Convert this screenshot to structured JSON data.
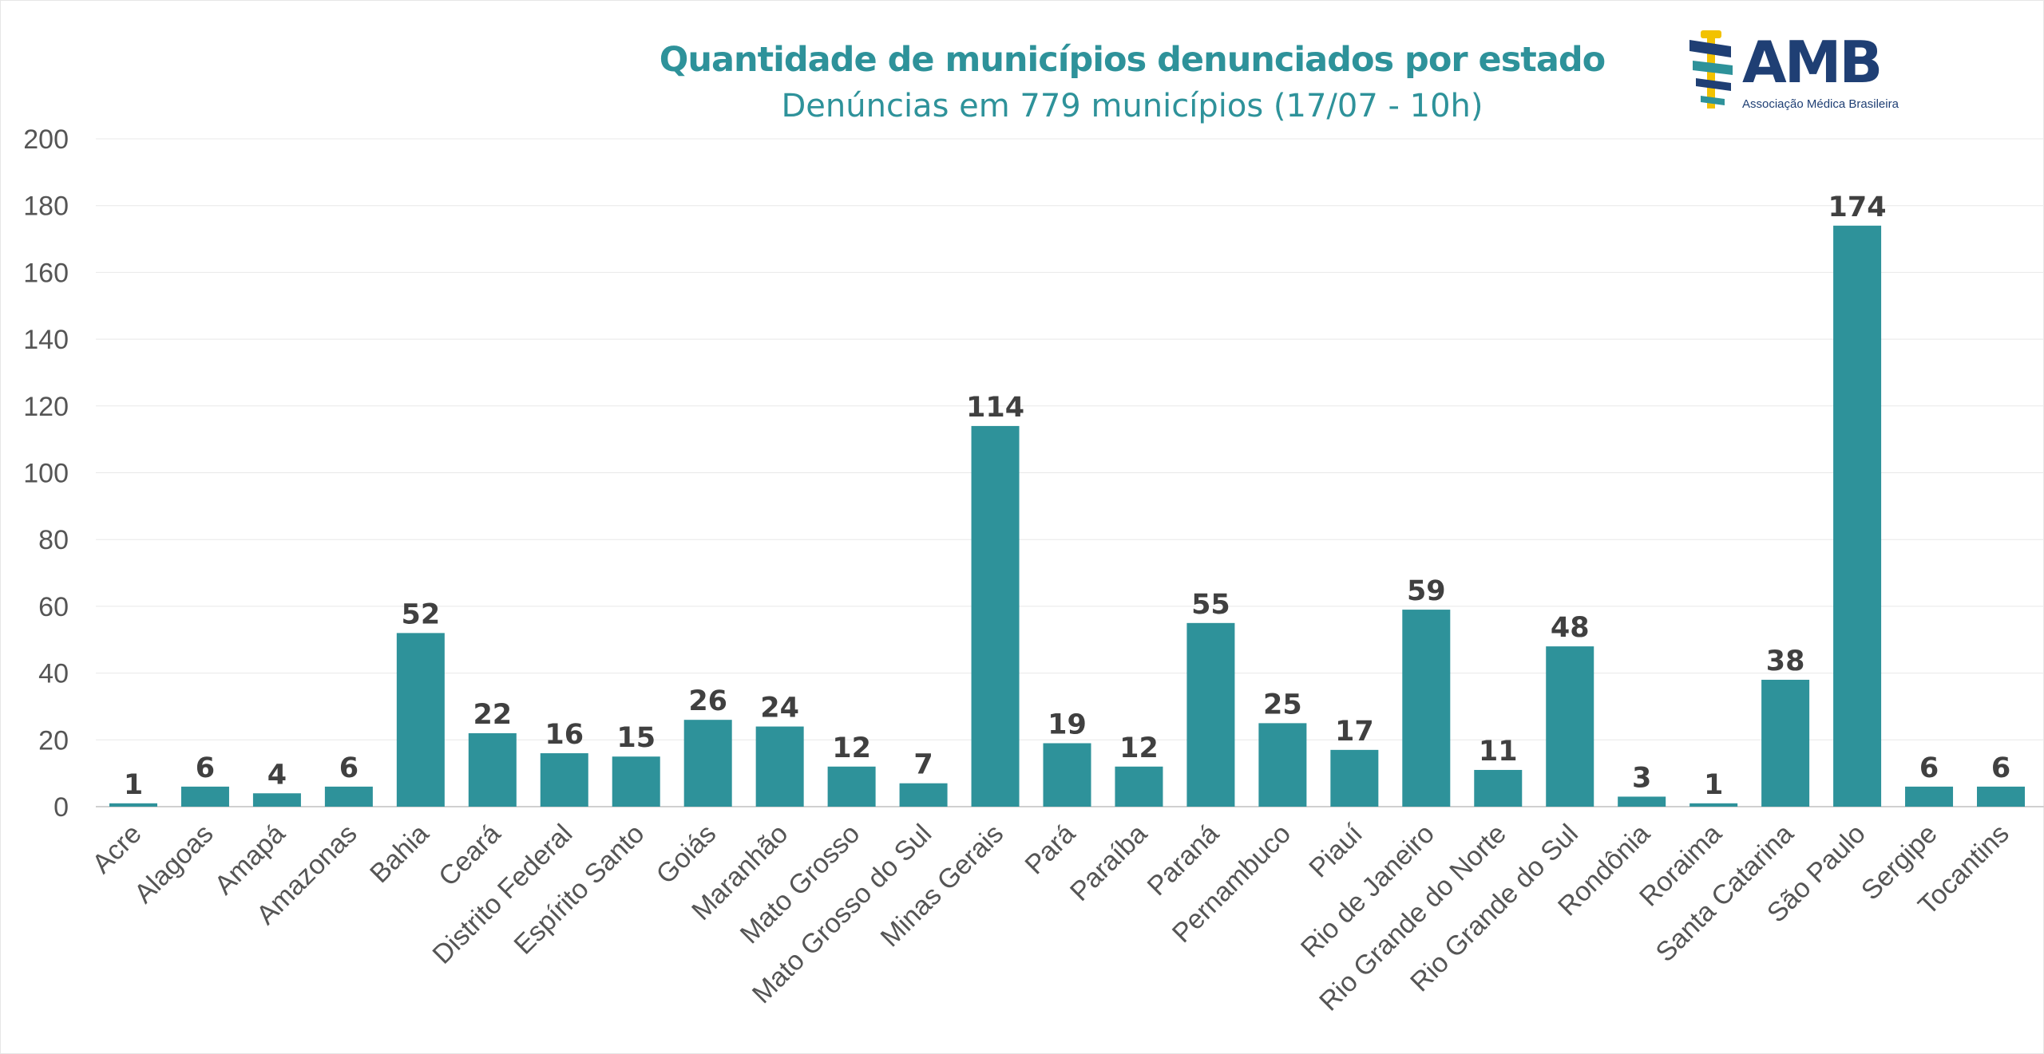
{
  "colors": {
    "bar": "#2e929a",
    "title": "#2e929a",
    "grid": "#e8e8e8",
    "logo_navy": "#1f3f74",
    "logo_gold": "#f2c200",
    "logo_teal": "#2e929a"
  },
  "logo": {
    "name": "AMB",
    "subtitle": "Associação Médica Brasileira"
  },
  "chart_data": {
    "type": "bar",
    "title": "Quantidade de municípios denunciados por estado",
    "subtitle": "Denúncias em 779 municípios (17/07 - 10h)",
    "xlabel": "",
    "ylabel": "",
    "ylim": [
      0,
      200
    ],
    "yticks": [
      0,
      20,
      40,
      60,
      80,
      100,
      120,
      140,
      160,
      180,
      200
    ],
    "grid": true,
    "legend": "none",
    "categories": [
      "Acre",
      "Alagoas",
      "Amapá",
      "Amazonas",
      "Bahia",
      "Ceará",
      "Distrito Federal",
      "Espírito Santo",
      "Goiás",
      "Maranhão",
      "Mato Grosso",
      "Mato Grosso do Sul",
      "Minas Gerais",
      "Pará",
      "Paraíba",
      "Paraná",
      "Pernambuco",
      "Piauí",
      "Rio de Janeiro",
      "Rio Grande do Norte",
      "Rio Grande do Sul",
      "Rondônia",
      "Roraima",
      "Santa Catarina",
      "São Paulo",
      "Sergipe",
      "Tocantins"
    ],
    "values": [
      1,
      6,
      4,
      6,
      52,
      22,
      16,
      15,
      26,
      24,
      12,
      7,
      114,
      19,
      12,
      55,
      25,
      17,
      59,
      11,
      48,
      3,
      1,
      38,
      174,
      6,
      6
    ]
  }
}
